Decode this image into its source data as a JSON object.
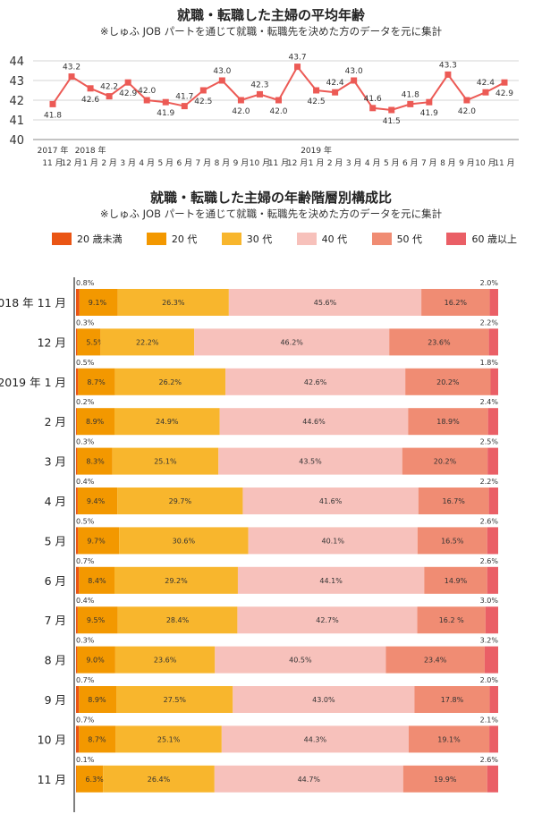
{
  "line_chart": {
    "title": "就職・転職した主婦の平均年齢",
    "subtitle": "※しゅふ JOB パートを通じて就職・転職先を決めた方のデータを元に集計",
    "year_labels": [
      "2017 年",
      "2018 年",
      "2019 年"
    ],
    "color": "#ec5a55"
  },
  "bar_chart": {
    "title": "就職・転職した主婦の年齢階層別構成比",
    "subtitle": "※しゅふ JOB パートを通じて就職・転職先を決めた方のデータを元に集計",
    "colors": [
      "#ea5514",
      "#f39800",
      "#f8b62d",
      "#f7c1bb",
      "#f08c73",
      "#ea5f66"
    ]
  },
  "chart_data": [
    {
      "type": "line",
      "title": "就職・転職した主婦の平均年齢",
      "categories": [
        "11 月",
        "12 月",
        "1 月",
        "2 月",
        "3 月",
        "4 月",
        "5 月",
        "6 月",
        "7 月",
        "8 月",
        "9 月",
        "10 月",
        "11 月",
        "12 月",
        "1 月",
        "2 月",
        "3 月",
        "4 月",
        "5 月",
        "6 月",
        "7 月",
        "8 月",
        "9 月",
        "10 月",
        "11 月"
      ],
      "values": [
        41.8,
        43.2,
        42.6,
        42.2,
        42.9,
        42.0,
        41.9,
        41.7,
        42.5,
        43.0,
        42.0,
        42.3,
        42.0,
        43.7,
        42.5,
        42.4,
        43.0,
        41.6,
        41.5,
        41.8,
        41.9,
        43.3,
        42.0,
        42.4,
        42.9
      ],
      "value_labels": [
        "41.8",
        "43.2",
        "42.6",
        "42.2",
        "42.9",
        "42.0",
        "41.9",
        "41.7",
        "42.5",
        "43.0",
        "42.0",
        "42.3",
        "42.0",
        "43.7",
        "42.5",
        "42.4",
        "43.0",
        "41.6",
        "41.5",
        "41.8",
        "41.9",
        "43.3",
        "42.0",
        "42.4",
        "42.9"
      ],
      "ylim": [
        40,
        44
      ],
      "yticks": [
        "40",
        "41",
        "42",
        "43",
        "44"
      ],
      "grid": true
    },
    {
      "type": "bar",
      "stacked": true,
      "orientation": "horizontal",
      "title": "就職・転職した主婦の年齢階層別構成比",
      "series_names": [
        "20 歳未満",
        "20 代",
        "30 代",
        "40 代",
        "50 代",
        "60 歳以上"
      ],
      "categories": [
        "2018 年 11 月",
        "12 月",
        "2019 年 1 月",
        "2 月",
        "3 月",
        "4 月",
        "5 月",
        "6 月",
        "7 月",
        "8 月",
        "9 月",
        "10 月",
        "11 月"
      ],
      "values": [
        [
          0.8,
          9.1,
          26.3,
          45.6,
          16.2,
          2.0
        ],
        [
          0.3,
          5.5,
          22.2,
          46.2,
          23.6,
          2.2
        ],
        [
          0.5,
          8.7,
          26.2,
          42.6,
          20.2,
          1.8
        ],
        [
          0.2,
          8.9,
          24.9,
          44.6,
          18.9,
          2.4
        ],
        [
          0.3,
          8.3,
          25.1,
          43.5,
          20.2,
          2.5
        ],
        [
          0.4,
          9.4,
          29.7,
          41.6,
          16.7,
          2.2
        ],
        [
          0.5,
          9.7,
          30.6,
          40.1,
          16.5,
          2.6
        ],
        [
          0.7,
          8.4,
          29.2,
          44.1,
          14.9,
          2.6
        ],
        [
          0.4,
          9.5,
          28.4,
          42.7,
          16.2,
          3.0
        ],
        [
          0.3,
          9.0,
          23.6,
          40.5,
          23.4,
          3.2
        ],
        [
          0.7,
          8.9,
          27.5,
          43.0,
          17.8,
          2.0
        ],
        [
          0.7,
          8.7,
          25.1,
          44.3,
          19.1,
          2.1
        ],
        [
          0.1,
          6.3,
          26.4,
          44.7,
          19.9,
          2.6
        ]
      ],
      "labels": [
        [
          "0.8%",
          "9.1%",
          "26.3%",
          "45.6%",
          "16.2%",
          "2.0%"
        ],
        [
          "0.3%",
          "5.5%",
          "22.2%",
          "46.2%",
          "23.6%",
          "2.2%"
        ],
        [
          "0.5%",
          "8.7%",
          "26.2%",
          "42.6%",
          "20.2%",
          "1.8%"
        ],
        [
          "0.2%",
          "8.9%",
          "24.9%",
          "44.6%",
          "18.9%",
          "2.4%"
        ],
        [
          "0.3%",
          "8.3%",
          "25.1%",
          "43.5%",
          "20.2%",
          "2.5%"
        ],
        [
          "0.4%",
          "9.4%",
          "29.7%",
          "41.6%",
          "16.7%",
          "2.2%"
        ],
        [
          "0.5%",
          "9.7%",
          "30.6%",
          "40.1%",
          "16.5%",
          "2.6%"
        ],
        [
          "0.7%",
          "8.4%",
          "29.2%",
          "44.1%",
          "14.9%",
          "2.6%"
        ],
        [
          "0.4%",
          "9.5%",
          "28.4%",
          "42.7%",
          "16.2 %",
          "3.0%"
        ],
        [
          "0.3%",
          "9.0%",
          "23.6%",
          "40.5%",
          "23.4%",
          "3.2%"
        ],
        [
          "0.7%",
          "8.9%",
          "27.5%",
          "43.0%",
          "17.8%",
          "2.0%"
        ],
        [
          "0.7%",
          "8.7%",
          "25.1%",
          "44.3%",
          "19.1%",
          "2.1%"
        ],
        [
          "0.1%",
          "6.3%",
          "26.4%",
          "44.7%",
          "19.9%",
          "2.6%"
        ]
      ],
      "legend_position": "top"
    }
  ]
}
